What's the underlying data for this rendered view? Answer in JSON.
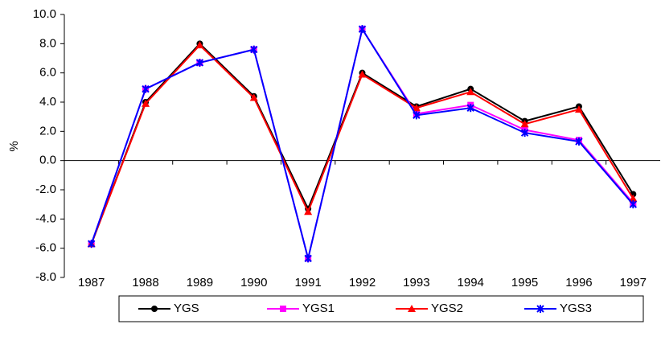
{
  "chart_data": {
    "type": "line",
    "y_label": "%",
    "categories": [
      "1987",
      "1988",
      "1989",
      "1990",
      "1991",
      "1992",
      "1993",
      "1994",
      "1995",
      "1996",
      "1997"
    ],
    "series": [
      {
        "name": "YGS",
        "color": "#000000",
        "marker": "circle",
        "values": [
          -5.7,
          4.0,
          8.0,
          4.4,
          -3.3,
          6.0,
          3.7,
          4.9,
          2.7,
          3.7,
          -2.3
        ]
      },
      {
        "name": "YGS1",
        "color": "#ff00ff",
        "marker": "square",
        "values": [
          -5.7,
          4.9,
          6.7,
          7.6,
          -6.7,
          9.0,
          3.2,
          3.8,
          2.1,
          1.4,
          -2.9
        ]
      },
      {
        "name": "YGS2",
        "color": "#ff0000",
        "marker": "triangle",
        "values": [
          -5.7,
          3.9,
          7.9,
          4.3,
          -3.5,
          5.9,
          3.6,
          4.7,
          2.5,
          3.5,
          -2.6
        ]
      },
      {
        "name": "YGS3",
        "color": "#0000ff",
        "marker": "star",
        "values": [
          -5.7,
          4.9,
          6.7,
          7.6,
          -6.7,
          9.0,
          3.1,
          3.6,
          1.9,
          1.3,
          -3.0
        ]
      }
    ],
    "ylim": [
      -8,
      10
    ],
    "yticks": [
      {
        "value": -8,
        "label": "-8.0"
      },
      {
        "value": -6,
        "label": "-6.0"
      },
      {
        "value": -4,
        "label": "-4.0"
      },
      {
        "value": -2,
        "label": "-2.0"
      },
      {
        "value": 0,
        "label": "0.0"
      },
      {
        "value": 2,
        "label": "2.0"
      },
      {
        "value": 4,
        "label": "4.0"
      },
      {
        "value": 6,
        "label": "6.0"
      },
      {
        "value": 8,
        "label": "8.0"
      },
      {
        "value": 10,
        "label": "10.0"
      }
    ],
    "grid": false
  }
}
